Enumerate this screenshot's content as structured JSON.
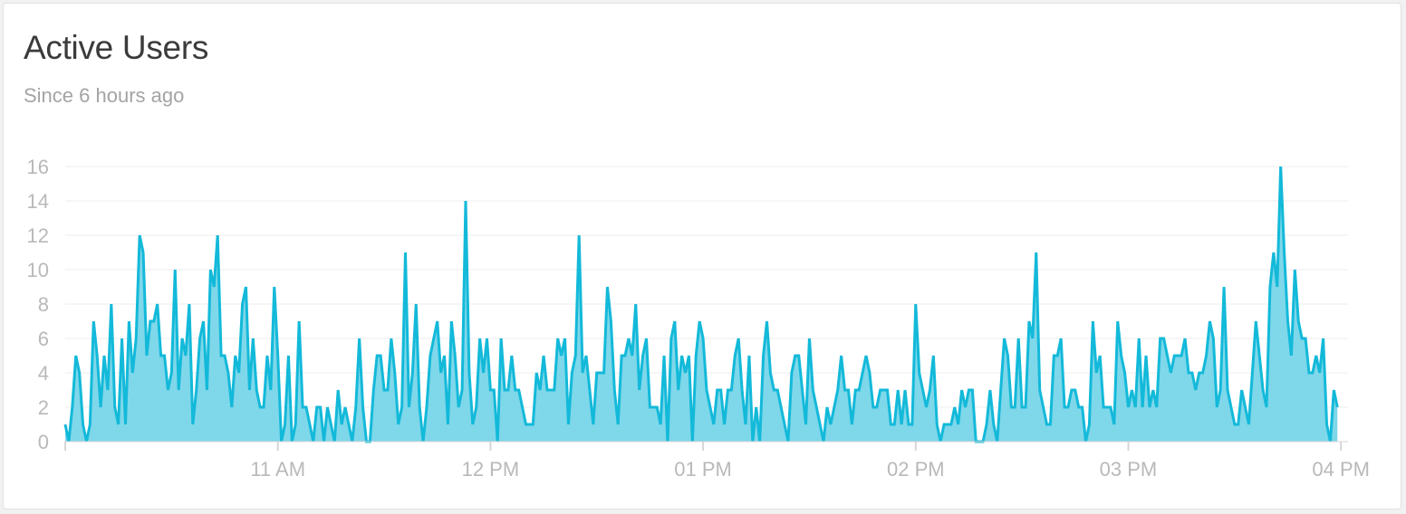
{
  "card": {
    "title": "Active Users",
    "subtitle": "Since 6 hours ago"
  },
  "colors": {
    "line": "#13b9d9",
    "area": "#7fd7ea",
    "grid": "#ededed",
    "axis": "#d6d6d6",
    "tick_text": "#b9b9b9"
  },
  "chart_data": {
    "type": "area",
    "title": "Active Users",
    "subtitle": "Since 6 hours ago",
    "xlabel": "",
    "ylabel": "",
    "x_ticks": [
      "11 AM",
      "12 PM",
      "01 PM",
      "02 PM",
      "03 PM",
      "04 PM"
    ],
    "y_ticks": [
      0,
      2,
      4,
      6,
      8,
      10,
      12,
      14,
      16
    ],
    "ylim": [
      0,
      16
    ],
    "xlim_minutes": [
      0,
      362
    ],
    "x_start_time": "10:00",
    "x_interval_minutes": 1,
    "grid": true,
    "series": [
      {
        "values": [
          1,
          0,
          2,
          5,
          4,
          1,
          0,
          1,
          7,
          5,
          2,
          5,
          3,
          8,
          2,
          1,
          6,
          1,
          7,
          4,
          6,
          12,
          11,
          5,
          7,
          7,
          8,
          5,
          5,
          3,
          4,
          10,
          3,
          6,
          5,
          8,
          1,
          3,
          6,
          7,
          3,
          10,
          9,
          12,
          5,
          5,
          4,
          2,
          5,
          4,
          8,
          9,
          3,
          6,
          3,
          2,
          2,
          5,
          3,
          9,
          5,
          0,
          1,
          5,
          0,
          1,
          7,
          2,
          2,
          1,
          0,
          2,
          2,
          0,
          2,
          1,
          0,
          3,
          1,
          2,
          1,
          0,
          2,
          6,
          2,
          0,
          0,
          3,
          5,
          5,
          3,
          3,
          6,
          4,
          1,
          2,
          11,
          2,
          4,
          8,
          2,
          0,
          2,
          5,
          6,
          7,
          4,
          5,
          1,
          7,
          5,
          2,
          3,
          14,
          4,
          1,
          2,
          6,
          4,
          6,
          3,
          3,
          0,
          6,
          3,
          3,
          5,
          3,
          3,
          2,
          1,
          1,
          1,
          4,
          3,
          5,
          3,
          3,
          3,
          6,
          5,
          6,
          1,
          4,
          5,
          12,
          4,
          5,
          3,
          1,
          4,
          4,
          4,
          9,
          7,
          3,
          1,
          5,
          5,
          6,
          5,
          8,
          3,
          5,
          6,
          2,
          2,
          2,
          1,
          5,
          0,
          6,
          7,
          3,
          5,
          4,
          5,
          0,
          5,
          7,
          6,
          3,
          2,
          1,
          3,
          3,
          1,
          3,
          3,
          5,
          6,
          3,
          1,
          5,
          0,
          2,
          0,
          5,
          7,
          4,
          3,
          3,
          2,
          1,
          0,
          4,
          5,
          5,
          3,
          1,
          6,
          3,
          2,
          1,
          0,
          2,
          1,
          2,
          3,
          5,
          3,
          3,
          1,
          3,
          3,
          4,
          5,
          4,
          2,
          2,
          3,
          3,
          3,
          1,
          1,
          3,
          1,
          3,
          1,
          1,
          8,
          4,
          3,
          2,
          3,
          5,
          1,
          0,
          1,
          1,
          1,
          2,
          1,
          3,
          2,
          3,
          3,
          0,
          0,
          0,
          1,
          3,
          1,
          0,
          3,
          6,
          5,
          2,
          2,
          6,
          2,
          2,
          7,
          6,
          11,
          3,
          2,
          1,
          1,
          5,
          5,
          6,
          2,
          2,
          3,
          3,
          2,
          2,
          0,
          1,
          7,
          4,
          5,
          2,
          2,
          2,
          1,
          7,
          5,
          4,
          2,
          3,
          2,
          6,
          2,
          5,
          2,
          3,
          2,
          6,
          6,
          5,
          4,
          5,
          5,
          5,
          6,
          4,
          4,
          3,
          4,
          4,
          5,
          7,
          6,
          2,
          3,
          9,
          3,
          2,
          1,
          1,
          3,
          2,
          1,
          4,
          7,
          5,
          3,
          2,
          9,
          11,
          9,
          16,
          11,
          7,
          5,
          10,
          7,
          6,
          6,
          4,
          4,
          5,
          4,
          6,
          1,
          0,
          3,
          2
        ]
      }
    ]
  }
}
